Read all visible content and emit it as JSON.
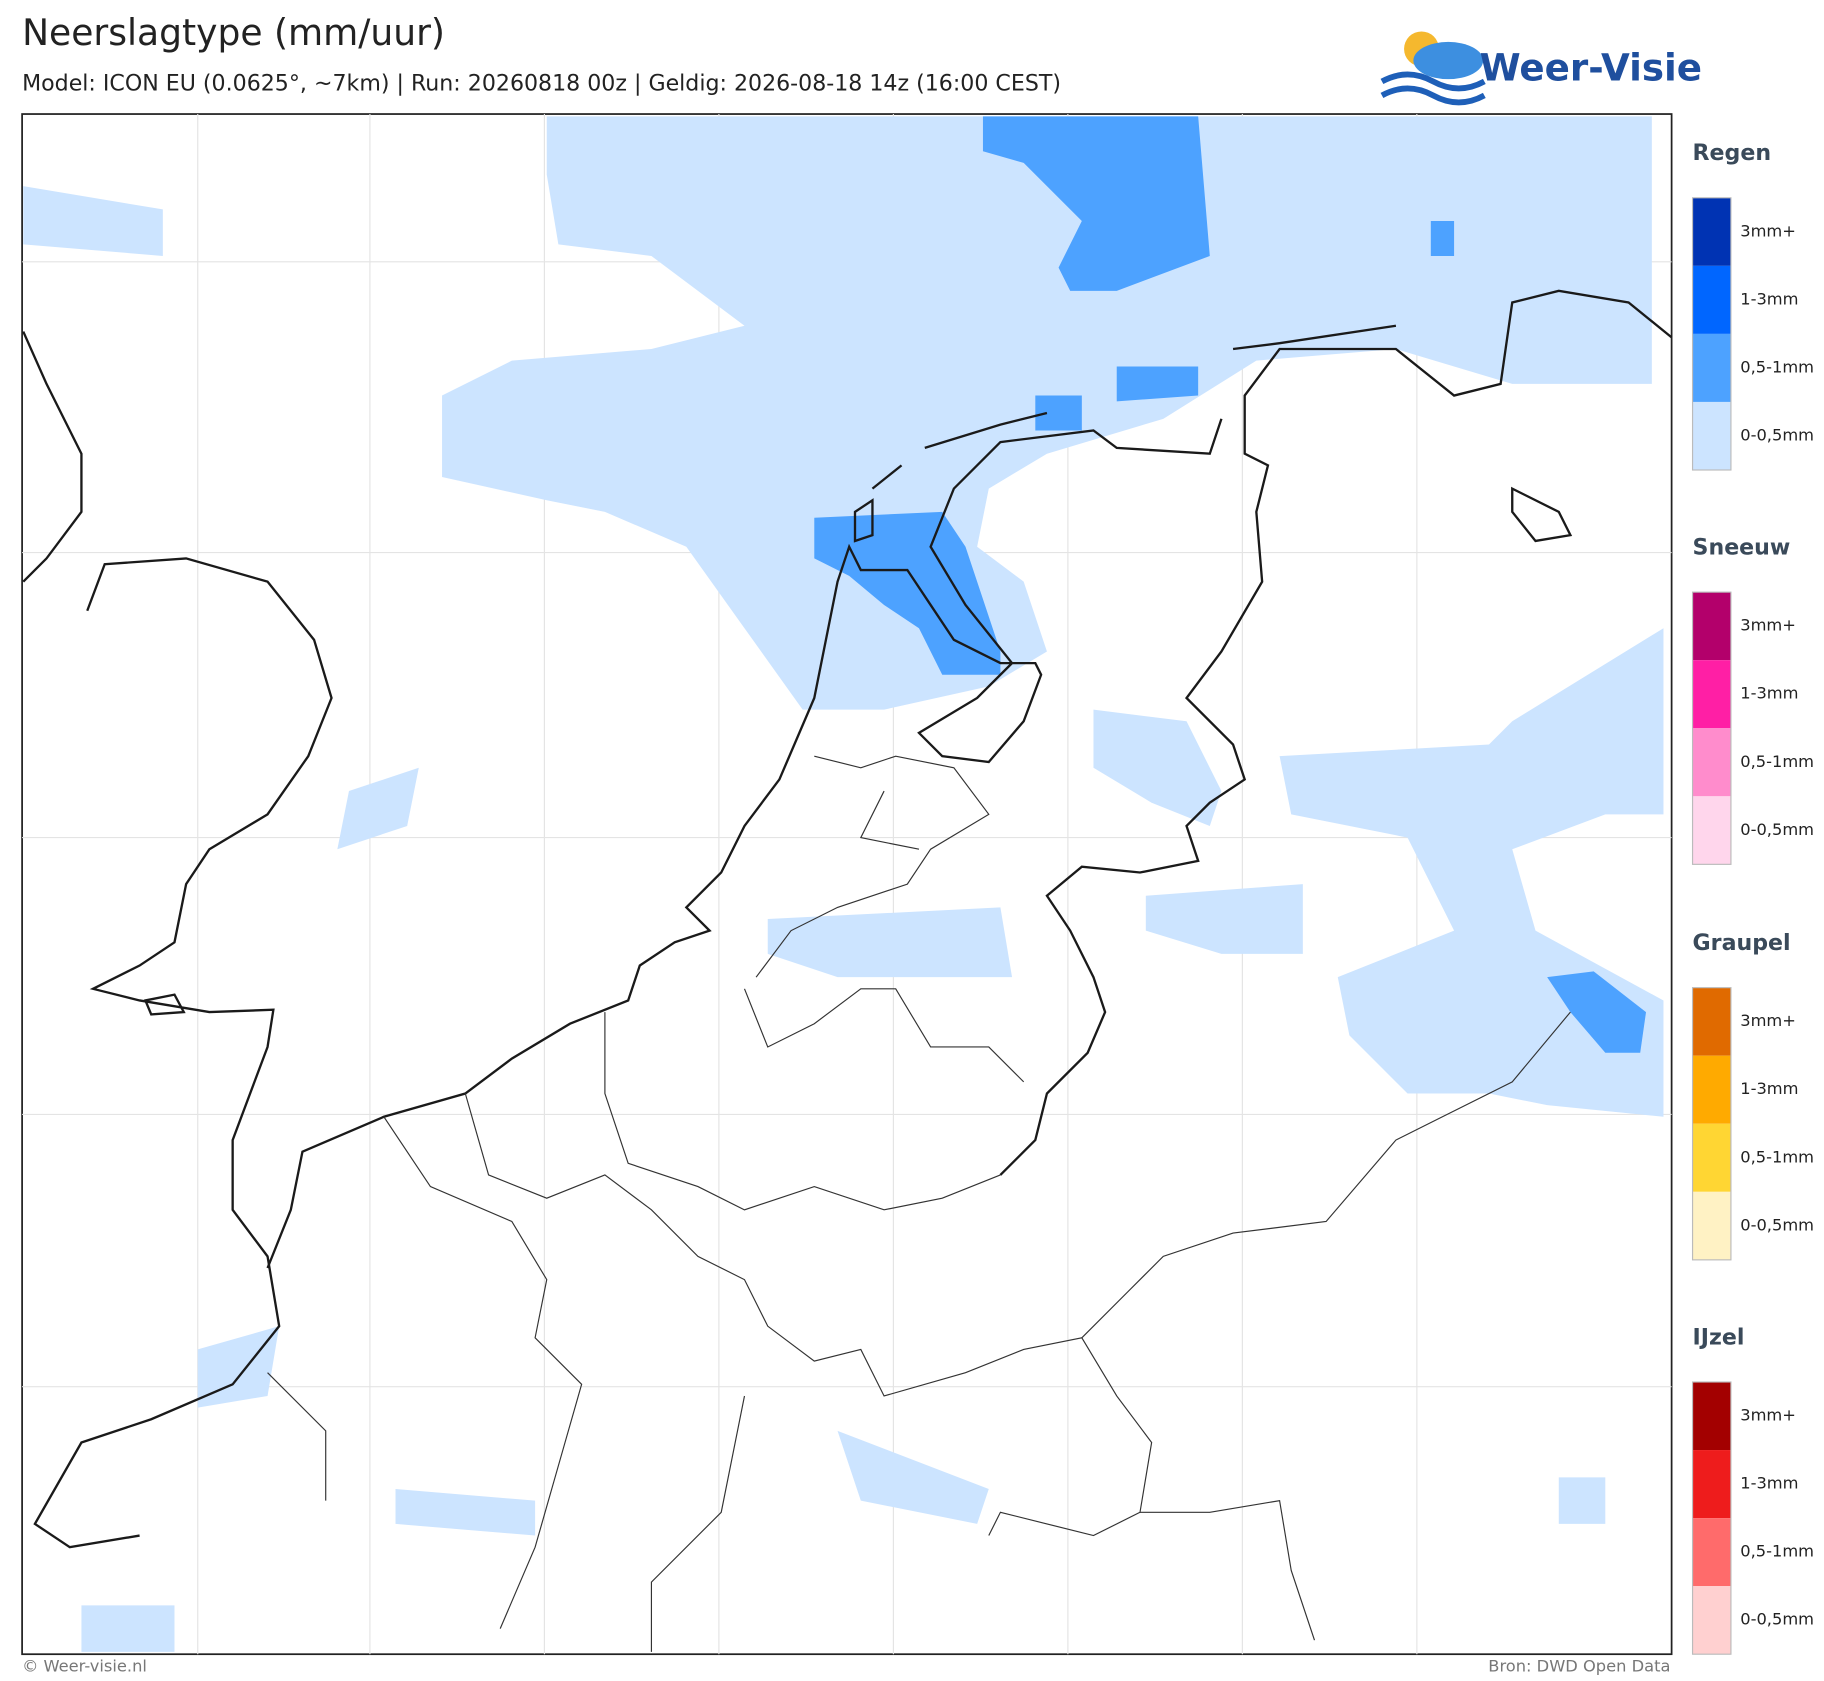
{
  "header": {
    "title": "Neerslagtype (mm/uur)",
    "subtitle": "Model: ICON EU (0.0625°, ~7km)  |  Run: 20260818 00z  |  Geldig: 2026-08-18 14z (16:00 CEST)"
  },
  "logo": {
    "text": "Weer-Visie"
  },
  "legend": [
    {
      "title": "Regen",
      "items": [
        "3mm+",
        "1-3mm",
        "0,5-1mm",
        "0-0,5mm"
      ],
      "colors": [
        "#0033b3",
        "#0066ff",
        "#4da2ff",
        "#cce4ff"
      ]
    },
    {
      "title": "Sneeuw",
      "items": [
        "3mm+",
        "1-3mm",
        "0,5-1mm",
        "0-0,5mm"
      ],
      "colors": [
        "#b3006b",
        "#ff1fa5",
        "#ff8ccc",
        "#ffd6ec"
      ]
    },
    {
      "title": "Graupel",
      "items": [
        "3mm+",
        "1-3mm",
        "0,5-1mm",
        "0-0,5mm"
      ],
      "colors": [
        "#e06a00",
        "#ffaa00",
        "#ffd633",
        "#fff2c4"
      ]
    },
    {
      "title": "IJzel",
      "items": [
        "3mm+",
        "1-3mm",
        "0,5-1mm",
        "0-0,5mm"
      ],
      "colors": [
        "#a30000",
        "#ee1c1c",
        "#ff6b6b",
        "#ffd0d0"
      ]
    }
  ],
  "footer": {
    "copyright": "© Weer-visie.nl",
    "source": "Bron: DWD Open Data"
  }
}
